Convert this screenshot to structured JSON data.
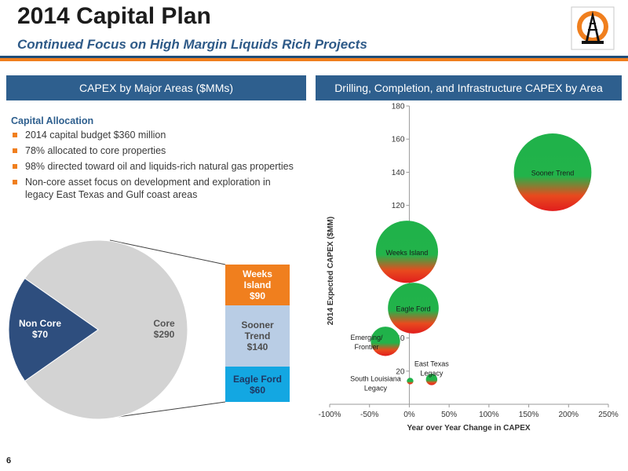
{
  "slide": {
    "title": "2014 Capital Plan",
    "subtitle": "Continued Focus on High Margin Liquids Rich Projects",
    "page_number": "6",
    "colors": {
      "navy": "#1f4e79",
      "orange": "#f07f1e",
      "panel_blue": "#2e5f8e"
    }
  },
  "left_panel": {
    "header": "CAPEX by Major Areas ($MMs)",
    "allocation_heading": "Capital Allocation",
    "bullets": [
      "2014 capital budget $360 million",
      "78% allocated to core properties",
      "98% directed toward oil and liquids-rich natural gas properties",
      "Non-core asset focus on development and exploration in legacy East Texas and Gulf coast areas"
    ],
    "pie": {
      "slices": [
        {
          "label": "Non Core",
          "value_label": "$70",
          "value": 70,
          "color": "#2e4e7e"
        },
        {
          "label": "Core",
          "value_label": "$290",
          "value": 290,
          "color": "#d3d3d3"
        }
      ]
    },
    "core_breakdown": [
      {
        "label": "Weeks Island",
        "value_label": "$90",
        "value": 90,
        "color": "#f07f1e"
      },
      {
        "label": "Sooner Trend",
        "value_label": "$140",
        "value": 140,
        "color": "#b9cde5"
      },
      {
        "label": "Eagle Ford",
        "value_label": "$60",
        "value": 60,
        "color": "#13a7e2"
      }
    ]
  },
  "right_panel": {
    "header": "Drilling, Completion, and Infrastructure CAPEX by Area"
  },
  "chart_data": {
    "type": "scatter",
    "bubble": true,
    "xlabel": "Year over Year Change in CAPEX",
    "ylabel": "2014 Expected CAPEX ($MM)",
    "xlim": [
      -100,
      250
    ],
    "ylim": [
      0,
      180
    ],
    "x_ticks": [
      "-100%",
      "-50%",
      "0%",
      "50%",
      "100%",
      "150%",
      "200%",
      "250%"
    ],
    "x_tick_values": [
      -100,
      -50,
      0,
      50,
      100,
      150,
      200,
      250
    ],
    "y_ticks": [
      "20",
      "40",
      "60",
      "80",
      "100",
      "120",
      "140",
      "160",
      "180"
    ],
    "y_tick_values": [
      20,
      40,
      60,
      80,
      100,
      120,
      140,
      160,
      180
    ],
    "grid": false,
    "points": [
      {
        "label": "Sooner Trend",
        "x": 180,
        "y": 140,
        "size": 140
      },
      {
        "label": "Weeks Island",
        "x": -3,
        "y": 92,
        "size": 90
      },
      {
        "label": "Eagle Ford",
        "x": 5,
        "y": 58,
        "size": 60
      },
      {
        "label": "Emerging/ Frontier",
        "x": -30,
        "y": 38,
        "size": 20
      },
      {
        "label": "East Texas Legacy",
        "x": 28,
        "y": 15,
        "size": 3
      },
      {
        "label": "South Louisiana Legacy",
        "x": 1,
        "y": 14,
        "size": 1
      }
    ]
  }
}
